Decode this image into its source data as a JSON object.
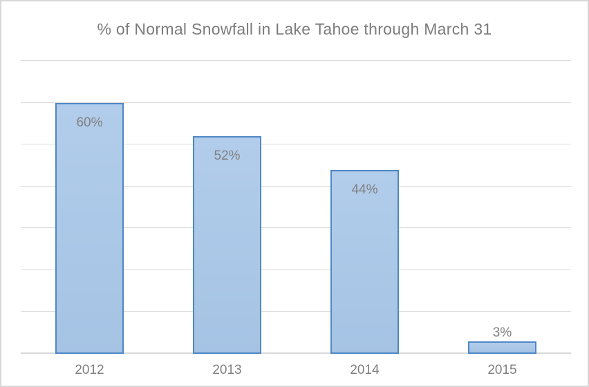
{
  "chart_data": {
    "type": "bar",
    "title": "% of Normal Snowfall in Lake Tahoe through March 31",
    "categories": [
      "2012",
      "2013",
      "2014",
      "2015"
    ],
    "values": [
      60,
      52,
      44,
      3
    ],
    "data_labels": [
      "60%",
      "52%",
      "44%",
      "3%"
    ],
    "xlabel": "",
    "ylabel": "",
    "ylim": [
      0,
      70
    ],
    "gridline_step": 10,
    "grid": true,
    "legend_position": "none",
    "y_axis_tick_labels_visible": false,
    "colors": {
      "bar_fill": "#A9C5E7",
      "bar_border": "#4E87C6",
      "gridline": "#D9D9D9",
      "title_text": "#7C7C7C",
      "label_text": "#7F7F7F",
      "axis_text": "#808080",
      "frame_border": "#D7D7D7",
      "background": "#FFFFFF"
    }
  }
}
